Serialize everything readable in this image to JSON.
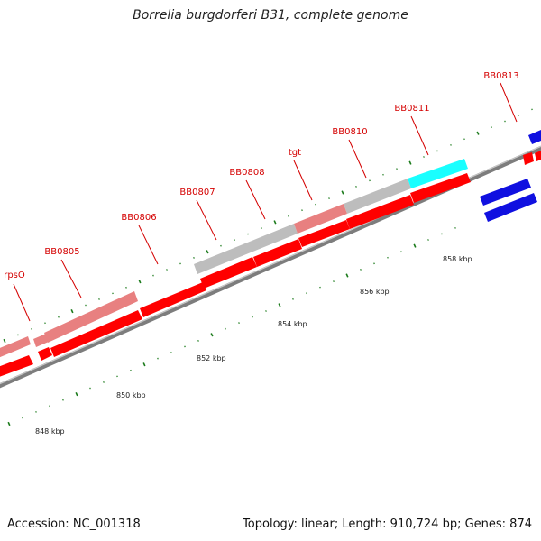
{
  "title": "Borrelia burgdorferi B31, complete genome",
  "footer": {
    "accession": "Accession: NC_001318",
    "summary": "Topology: linear; Length: 910,724 bp; Genes: 874"
  },
  "colors": {
    "forward_gene": "#ff0000",
    "pseudo_gene": "#e88080",
    "unknown_gene": "#bdbdbd",
    "rna_gene": "#19ffff",
    "reverse_gene": "#1010e0",
    "label": "#d40000",
    "tick": "#1a7a1a",
    "backbone": "#808080"
  },
  "tick_labels": [
    {
      "kbp": 848,
      "label": "848 kbp"
    },
    {
      "kbp": 850,
      "label": "850 kbp"
    },
    {
      "kbp": 852,
      "label": "852 kbp"
    },
    {
      "kbp": 854,
      "label": "854 kbp"
    },
    {
      "kbp": 856,
      "label": "856 kbp"
    },
    {
      "kbp": 858,
      "label": "858 kbp"
    }
  ],
  "gene_labels": [
    {
      "id": "rpsO",
      "label": "rpsO"
    },
    {
      "id": "BB0805",
      "label": "BB0805"
    },
    {
      "id": "BB0806",
      "label": "BB0806"
    },
    {
      "id": "BB0807",
      "label": "BB0807"
    },
    {
      "id": "BB0808",
      "label": "BB0808"
    },
    {
      "id": "tgt",
      "label": "tgt"
    },
    {
      "id": "BB0810",
      "label": "BB0810"
    },
    {
      "id": "BB0811",
      "label": "BB0811"
    },
    {
      "id": "BB0813",
      "label": "BB0813"
    }
  ]
}
